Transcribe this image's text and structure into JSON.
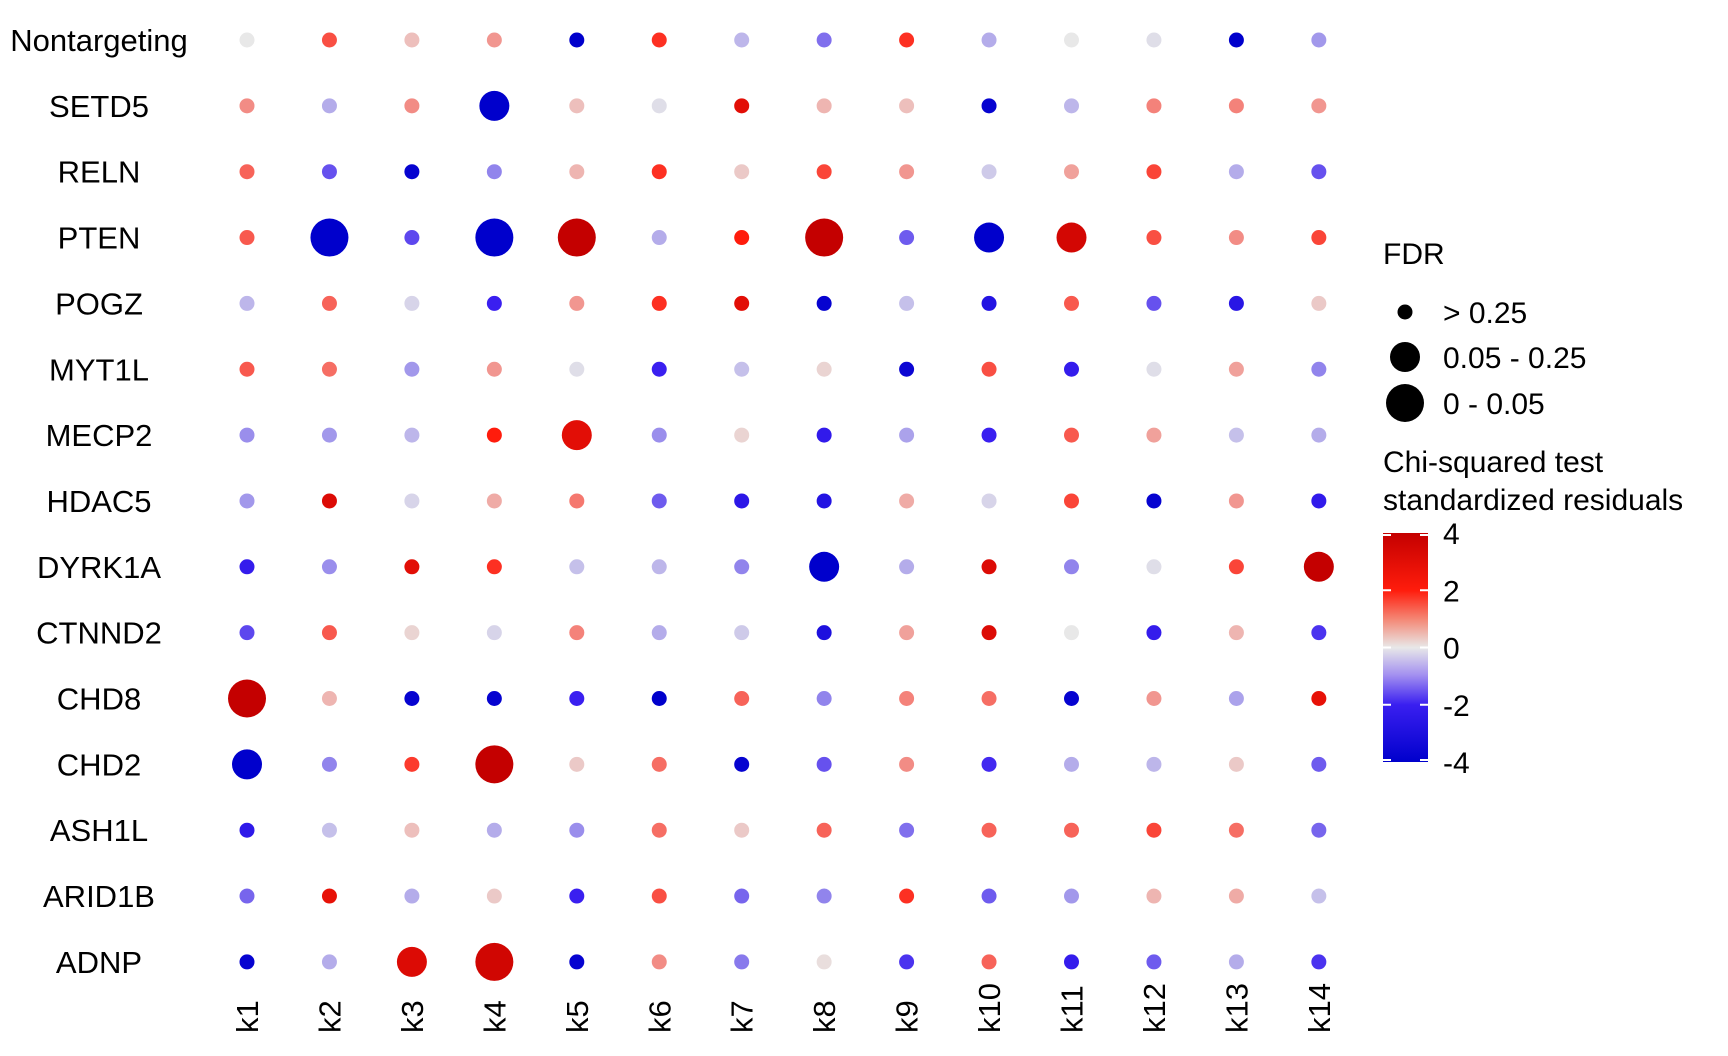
{
  "chart_data": {
    "type": "dotplot",
    "rows": [
      "Nontargeting",
      "SETD5",
      "RELN",
      "PTEN",
      "POGZ",
      "MYT1L",
      "MECP2",
      "HDAC5",
      "DYRK1A",
      "CTNND2",
      "CHD8",
      "CHD2",
      "ASH1L",
      "ARID1B",
      "ADNP"
    ],
    "columns": [
      "k1",
      "k2",
      "k3",
      "k4",
      "k5",
      "k6",
      "k7",
      "k8",
      "k9",
      "k10",
      "k11",
      "k12",
      "k13",
      "k14"
    ],
    "residuals": [
      [
        0.0,
        1.5,
        0.4,
        0.8,
        -4.0,
        1.8,
        -0.5,
        -1.2,
        1.8,
        -0.6,
        0.0,
        -0.1,
        -4.0,
        -0.8
      ],
      [
        0.9,
        -0.6,
        0.9,
        -4.0,
        0.4,
        -0.1,
        3.0,
        0.5,
        0.4,
        -3.8,
        -0.5,
        1.0,
        1.0,
        0.8
      ],
      [
        1.3,
        -1.5,
        -3.8,
        -1.0,
        0.5,
        1.8,
        0.3,
        1.6,
        0.8,
        -0.3,
        0.7,
        1.6,
        -0.6,
        -1.5
      ],
      [
        1.4,
        -4.0,
        -1.6,
        -4.0,
        4.0,
        -0.6,
        2.0,
        4.0,
        -1.4,
        -4.0,
        3.5,
        1.5,
        0.9,
        1.6
      ],
      [
        -0.5,
        1.3,
        -0.2,
        -2.0,
        0.8,
        1.8,
        3.0,
        -3.8,
        -0.4,
        -2.8,
        1.4,
        -1.5,
        -2.6,
        0.3
      ],
      [
        1.4,
        1.2,
        -0.8,
        0.8,
        -0.1,
        -2.0,
        -0.4,
        0.2,
        -3.6,
        1.5,
        -2.2,
        -0.1,
        0.7,
        -1.0
      ],
      [
        -0.9,
        -0.8,
        -0.5,
        2.0,
        3.0,
        -0.9,
        0.2,
        -2.3,
        -0.7,
        -2.0,
        1.4,
        0.7,
        -0.4,
        -0.6
      ],
      [
        -0.8,
        3.2,
        -0.2,
        0.6,
        1.1,
        -1.4,
        -2.5,
        -2.8,
        0.6,
        -0.2,
        1.6,
        -3.8,
        0.8,
        -2.3
      ],
      [
        -2.2,
        -0.9,
        3.0,
        1.8,
        -0.4,
        -0.5,
        -1.0,
        -4.0,
        -0.6,
        3.2,
        -1.0,
        -0.1,
        1.6,
        4.0
      ],
      [
        -1.6,
        1.4,
        0.2,
        -0.2,
        1.0,
        -0.6,
        -0.3,
        -3.0,
        0.7,
        3.2,
        0.0,
        -2.2,
        0.5,
        -1.8
      ],
      [
        4.0,
        0.5,
        -3.8,
        -3.8,
        -2.0,
        -4.0,
        1.3,
        -1.0,
        1.0,
        1.2,
        -3.8,
        0.8,
        -0.7,
        2.8
      ],
      [
        -4.0,
        -1.0,
        1.7,
        4.0,
        0.3,
        1.2,
        -3.8,
        -1.5,
        0.9,
        -1.9,
        -0.6,
        -0.5,
        0.3,
        -1.4
      ],
      [
        -2.4,
        -0.4,
        0.4,
        -0.6,
        -0.9,
        1.2,
        0.3,
        1.3,
        -1.2,
        1.3,
        1.3,
        1.6,
        1.2,
        -1.3
      ],
      [
        -1.3,
        2.8,
        -0.6,
        0.3,
        -2.0,
        1.5,
        -1.3,
        -1.0,
        1.8,
        -1.4,
        -0.8,
        0.5,
        0.6,
        -0.4
      ],
      [
        -3.8,
        -0.6,
        3.2,
        3.6,
        -3.8,
        0.9,
        -1.1,
        0.1,
        -1.8,
        1.3,
        -2.2,
        -1.4,
        -0.6,
        -1.8
      ]
    ],
    "fdr_class": [
      [
        0,
        0,
        0,
        0,
        0,
        0,
        0,
        0,
        0,
        0,
        0,
        0,
        0,
        0
      ],
      [
        0,
        0,
        0,
        1,
        0,
        0,
        0,
        0,
        0,
        0,
        0,
        0,
        0,
        0
      ],
      [
        0,
        0,
        0,
        0,
        0,
        0,
        0,
        0,
        0,
        0,
        0,
        0,
        0,
        0
      ],
      [
        0,
        2,
        0,
        2,
        2,
        0,
        0,
        2,
        0,
        1,
        1,
        0,
        0,
        0
      ],
      [
        0,
        0,
        0,
        0,
        0,
        0,
        0,
        0,
        0,
        0,
        0,
        0,
        0,
        0
      ],
      [
        0,
        0,
        0,
        0,
        0,
        0,
        0,
        0,
        0,
        0,
        0,
        0,
        0,
        0
      ],
      [
        0,
        0,
        0,
        0,
        1,
        0,
        0,
        0,
        0,
        0,
        0,
        0,
        0,
        0
      ],
      [
        0,
        0,
        0,
        0,
        0,
        0,
        0,
        0,
        0,
        0,
        0,
        0,
        0,
        0
      ],
      [
        0,
        0,
        0,
        0,
        0,
        0,
        0,
        1,
        0,
        0,
        0,
        0,
        0,
        1
      ],
      [
        0,
        0,
        0,
        0,
        0,
        0,
        0,
        0,
        0,
        0,
        0,
        0,
        0,
        0
      ],
      [
        2,
        0,
        0,
        0,
        0,
        0,
        0,
        0,
        0,
        0,
        0,
        0,
        0,
        0
      ],
      [
        1,
        0,
        0,
        2,
        0,
        0,
        0,
        0,
        0,
        0,
        0,
        0,
        0,
        0
      ],
      [
        0,
        0,
        0,
        0,
        0,
        0,
        0,
        0,
        0,
        0,
        0,
        0,
        0,
        0
      ],
      [
        0,
        0,
        0,
        0,
        0,
        0,
        0,
        0,
        0,
        0,
        0,
        0,
        0,
        0
      ],
      [
        0,
        0,
        1,
        2,
        0,
        0,
        0,
        0,
        0,
        0,
        0,
        0,
        0,
        0
      ]
    ],
    "size_legend": {
      "title": "FDR",
      "labels": [
        "> 0.25",
        "0.05 - 0.25",
        "0 - 0.05"
      ]
    },
    "color_legend": {
      "title_line1": "Chi-squared test",
      "title_line2": "standardized residuals",
      "ticks": [
        4,
        2,
        0,
        -2,
        -4
      ],
      "tick_labels": [
        "4",
        "2",
        "0",
        "-2",
        "-4"
      ],
      "range": [
        -4,
        4
      ],
      "colors": {
        "low": "#0000cc",
        "mid_low": "#3a1ff0",
        "mid": "#e8e8e8",
        "mid_high": "#ff2a1a",
        "high": "#c40000"
      }
    }
  }
}
